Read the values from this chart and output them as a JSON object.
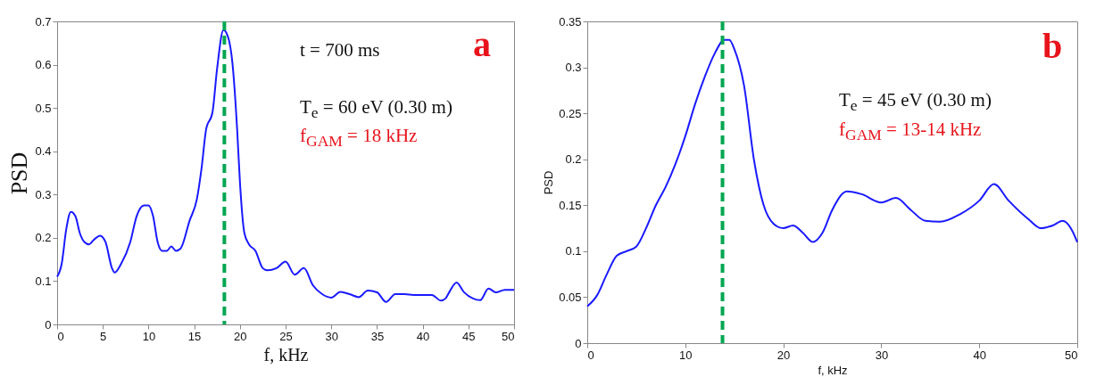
{
  "chart_data": [
    {
      "type": "line",
      "xlabel": "f, kHz",
      "ylabel": "PSD",
      "xlim": [
        0,
        50
      ],
      "ylim": [
        0,
        0.7
      ],
      "xticks": [
        0,
        5,
        10,
        15,
        20,
        25,
        30,
        35,
        40,
        45,
        50
      ],
      "yticks": [
        0,
        0.1,
        0.2,
        0.3,
        0.4,
        0.5,
        0.6,
        0.7
      ],
      "grid": false,
      "line_style": "solid",
      "annotations": [
        "t = 700 ms",
        "T$_{e}$ = 60 eV (0.30 m)",
        "f$_{GAM}$ = 18 kHz",
        "a"
      ],
      "ref_lines": [
        {
          "axis": "x",
          "value": 18.3,
          "label": null,
          "color": "#00a651",
          "line_style": "dashed"
        }
      ],
      "series": [
        {
          "color": "#1a1aff",
          "x": [
            0,
            0.5,
            1,
            1.5,
            2,
            2.5,
            3,
            3.5,
            4,
            4.7,
            5.3,
            6,
            6.3,
            7,
            8,
            8.7,
            9.5,
            10,
            10.5,
            11,
            11.5,
            12,
            12.5,
            13,
            13.5,
            14.5,
            15.3,
            15.8,
            16.3,
            17,
            17.5,
            18.2,
            18.6,
            19.2,
            19.7,
            20,
            20.5,
            21,
            21.7,
            22.5,
            23,
            24,
            25,
            26,
            27,
            28,
            29,
            30,
            31,
            32,
            33,
            34,
            35,
            36,
            37,
            38,
            39,
            40,
            41,
            42,
            42.5,
            43,
            43.7,
            44.5,
            45.5,
            46.3,
            47.2,
            48,
            49,
            50
          ],
          "values": [
            0.11,
            0.14,
            0.22,
            0.26,
            0.25,
            0.21,
            0.19,
            0.185,
            0.195,
            0.205,
            0.19,
            0.13,
            0.12,
            0.14,
            0.19,
            0.25,
            0.275,
            0.275,
            0.25,
            0.19,
            0.17,
            0.17,
            0.18,
            0.17,
            0.175,
            0.24,
            0.29,
            0.36,
            0.45,
            0.49,
            0.59,
            0.68,
            0.67,
            0.6,
            0.45,
            0.33,
            0.21,
            0.185,
            0.17,
            0.13,
            0.125,
            0.13,
            0.145,
            0.115,
            0.13,
            0.09,
            0.07,
            0.062,
            0.075,
            0.07,
            0.063,
            0.078,
            0.074,
            0.052,
            0.07,
            0.07,
            0.068,
            0.068,
            0.068,
            0.055,
            0.06,
            0.078,
            0.097,
            0.075,
            0.06,
            0.056,
            0.083,
            0.074,
            0.08,
            0.08
          ]
        }
      ]
    },
    {
      "type": "line",
      "xlabel": "f, kHz",
      "ylabel": "PSD",
      "xlim": [
        0,
        50
      ],
      "ylim": [
        0,
        0.35
      ],
      "xticks": [
        0,
        10,
        20,
        30,
        40,
        50
      ],
      "yticks": [
        0,
        0.05,
        0.1,
        0.15,
        0.2,
        0.25,
        0.3,
        0.35
      ],
      "grid": false,
      "line_style": "solid",
      "annotations": [
        "T$_{e}$ = 45 eV (0.30 m)",
        "f$_{GAM}$ = 13-14 kHz",
        "b"
      ],
      "ref_lines": [
        {
          "axis": "x",
          "value": 13.8,
          "label": null,
          "color": "#00a651",
          "line_style": "dashed"
        }
      ],
      "series": [
        {
          "color": "#1a1aff",
          "x": [
            0,
            1,
            2,
            3,
            4,
            5,
            6,
            7,
            8,
            9,
            10,
            11,
            12,
            13,
            14,
            14.5,
            15,
            16,
            17,
            18,
            19,
            20,
            21,
            22,
            23,
            24,
            25,
            26.5,
            28,
            30,
            31.5,
            33,
            34.5,
            36,
            38,
            40,
            41.5,
            43,
            45,
            46.3,
            47.5,
            48.5,
            49.5,
            50
          ],
          "values": [
            0.04,
            0.052,
            0.075,
            0.095,
            0.1,
            0.105,
            0.125,
            0.15,
            0.17,
            0.195,
            0.225,
            0.26,
            0.29,
            0.315,
            0.33,
            0.33,
            0.32,
            0.28,
            0.2,
            0.15,
            0.13,
            0.125,
            0.128,
            0.12,
            0.11,
            0.12,
            0.145,
            0.165,
            0.162,
            0.153,
            0.158,
            0.145,
            0.133,
            0.132,
            0.14,
            0.155,
            0.173,
            0.155,
            0.135,
            0.125,
            0.128,
            0.133,
            0.122,
            0.11
          ]
        }
      ]
    }
  ]
}
